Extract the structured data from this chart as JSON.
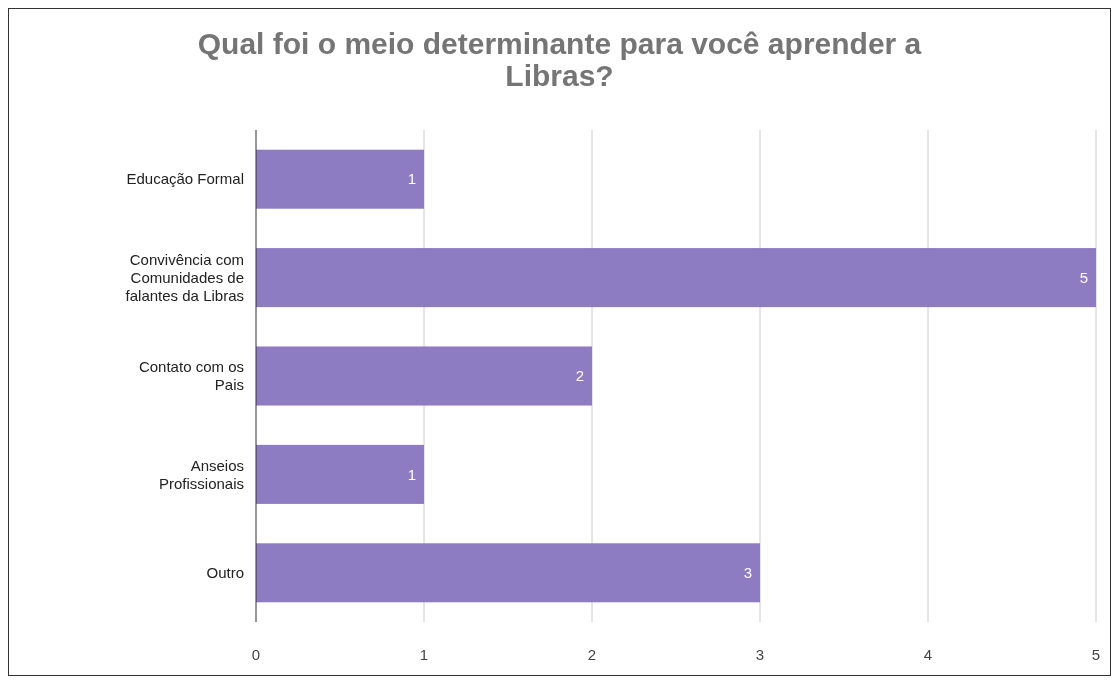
{
  "chart_data": {
    "type": "bar",
    "orientation": "horizontal",
    "title": "Qual foi o meio determinante para você aprender a Libras?",
    "categories": [
      "Educação Formal",
      "Convivência com Comunidades de falantes da Libras",
      "Contato com os Pais",
      "Anseios Profissionais",
      "Outro"
    ],
    "values": [
      1,
      5,
      2,
      1,
      3
    ],
    "color": "#8e7cc3",
    "xlim": [
      0,
      5
    ],
    "xticks": [
      0,
      1,
      2,
      3,
      4,
      5
    ],
    "grid": "x",
    "data_labels": true
  }
}
